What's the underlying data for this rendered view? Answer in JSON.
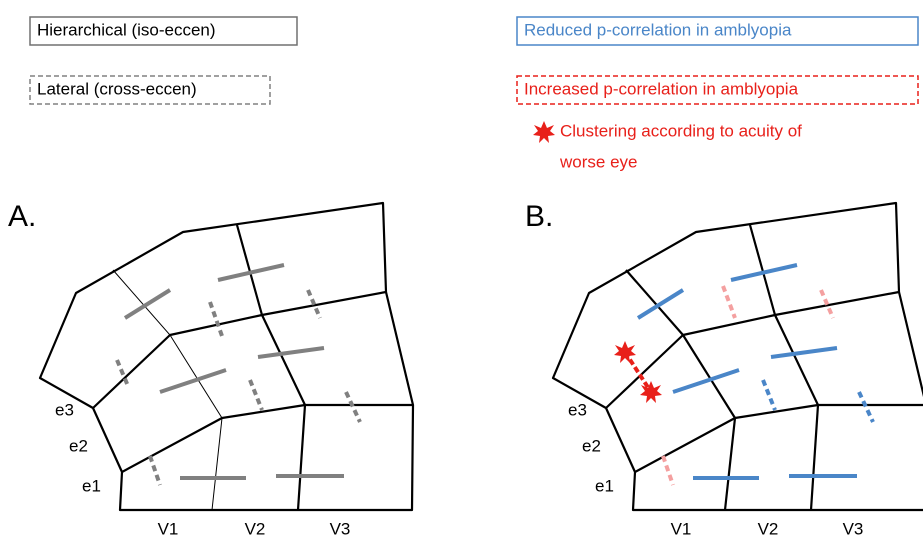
{
  "legend": {
    "hierarchical": "Hierarchical (iso-eccen)",
    "lateral": "Lateral (cross-eccen)",
    "reduced": "Reduced p-correlation in amblyopia",
    "increased": "Increased p-correlation in amblyopia",
    "clustering": [
      "Clustering according to acuity of",
      "worse eye"
    ]
  },
  "panels": [
    {
      "label": "A.",
      "eccentricities": [
        "e3",
        "e2",
        "e1"
      ],
      "areas": [
        "V1",
        "V2",
        "V3"
      ]
    },
    {
      "label": "B.",
      "eccentricities": [
        "e3",
        "e2",
        "e1"
      ],
      "areas": [
        "V1",
        "V2",
        "V3"
      ]
    }
  ]
}
